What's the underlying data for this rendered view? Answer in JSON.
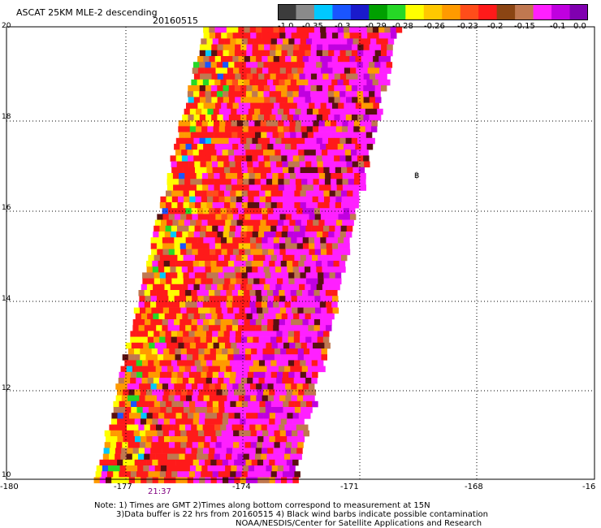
{
  "header": {
    "title": "ASCAT 25KM MLE-2 descending",
    "date": "20160515"
  },
  "colorbar": {
    "colors": [
      "#3c3c3c",
      "#8a8a8a",
      "#00c8ff",
      "#1a55ff",
      "#1a1acc",
      "#00a000",
      "#26d826",
      "#ffff00",
      "#ffc800",
      "#ff9a00",
      "#ff4d1a",
      "#ff1a1a",
      "#8b4513",
      "#c07850",
      "#ff20ff",
      "#c000e0",
      "#8000b0"
    ],
    "labels": [
      "-1.0",
      "-0.35",
      "-0.3",
      "-0.29",
      "-0.28",
      "-0.26",
      "-0.23",
      "-0.2",
      "-0.15",
      "-0.1",
      "0.0"
    ]
  },
  "axes": {
    "lon_ticks": [
      "-180",
      "-177",
      "-174",
      "-171",
      "-168",
      "-16"
    ],
    "lat_ticks": [
      "20",
      "18",
      "16",
      "14",
      "12",
      "10"
    ]
  },
  "pass_time": "21:37",
  "map_marker": "฿",
  "notes": {
    "line1": "Note: 1) Times are GMT 2)Times along bottom correspond to measurement at 15N",
    "line2": "3)Data buffer is 22 hrs from 20160515 4) Black wind barbs indicate possible contamination",
    "line3": "NOAA/NESDIS/Center for Satellite Applications and Research"
  }
}
